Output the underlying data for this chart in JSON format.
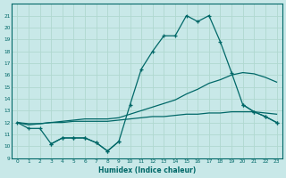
{
  "xlabel": "Humidex (Indice chaleur)",
  "bg_color": "#c8e8e8",
  "grid_color": "#d0e8e0",
  "line_color": "#006868",
  "xlim": [
    -0.5,
    23.5
  ],
  "ylim": [
    9,
    22
  ],
  "yticks": [
    9,
    10,
    11,
    12,
    13,
    14,
    15,
    16,
    17,
    18,
    19,
    20,
    21
  ],
  "xticks": [
    0,
    1,
    2,
    3,
    4,
    5,
    6,
    7,
    8,
    9,
    10,
    11,
    12,
    13,
    14,
    15,
    16,
    17,
    18,
    19,
    20,
    21,
    22,
    23
  ],
  "line_top": [
    12.0,
    11.5,
    11.5,
    null,
    null,
    null,
    null,
    null,
    null,
    null,
    13.5,
    16.5,
    18.0,
    19.3,
    19.3,
    21.0,
    20.5,
    21.0,
    18.8,
    16.2,
    null,
    null,
    null,
    null
  ],
  "line_max": [
    12.0,
    11.5,
    11.5,
    10.2,
    10.7,
    10.7,
    10.7,
    10.3,
    9.6,
    10.4,
    13.5,
    16.5,
    18.0,
    19.3,
    19.3,
    21.0,
    20.5,
    21.0,
    18.8,
    16.2,
    13.5,
    12.9,
    12.5,
    12.0
  ],
  "line_avg": [
    12.0,
    11.8,
    11.9,
    12.0,
    12.1,
    12.2,
    12.3,
    12.3,
    12.3,
    12.4,
    12.7,
    13.0,
    13.3,
    13.6,
    13.9,
    14.4,
    14.8,
    15.3,
    15.6,
    16.0,
    16.2,
    16.1,
    15.8,
    15.4
  ],
  "line_min": [
    12.0,
    11.9,
    11.9,
    12.0,
    12.0,
    12.1,
    12.1,
    12.1,
    12.1,
    12.2,
    12.3,
    12.4,
    12.5,
    12.5,
    12.6,
    12.7,
    12.7,
    12.8,
    12.8,
    12.9,
    12.9,
    12.9,
    12.8,
    12.7
  ],
  "line_bot": [
    null,
    null,
    null,
    10.2,
    10.7,
    10.7,
    10.7,
    10.3,
    9.6,
    10.4,
    null,
    null,
    null,
    null,
    null,
    null,
    null,
    null,
    null,
    null,
    13.5,
    12.9,
    12.5,
    12.0
  ]
}
